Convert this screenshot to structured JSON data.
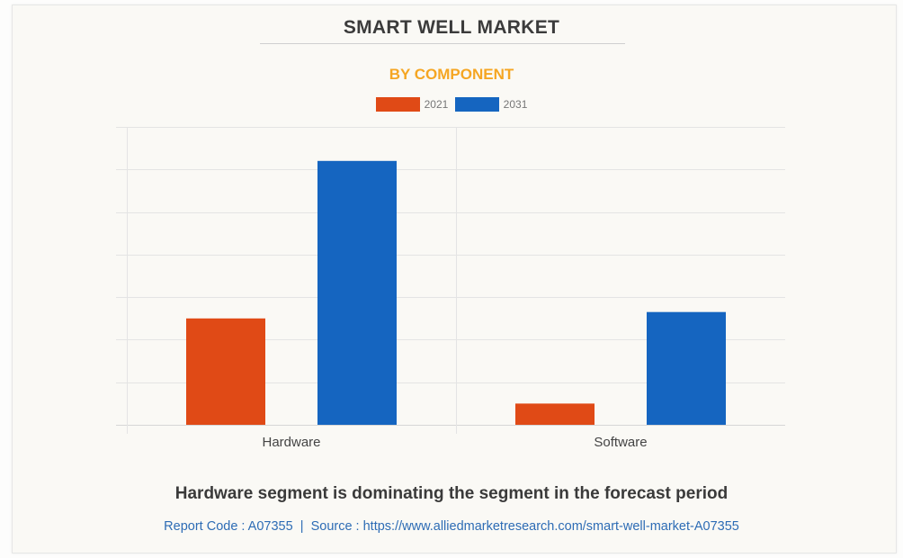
{
  "header": {
    "title": "SMART WELL MARKET",
    "subtitle": "BY COMPONENT"
  },
  "colors": {
    "series_2021": "#e04a16",
    "series_2031": "#1565c0",
    "subtitle": "#f5a623",
    "source_link": "#2d6cb5"
  },
  "chart_data": {
    "type": "bar",
    "title": "SMART WELL MARKET",
    "subtitle": "BY COMPONENT",
    "categories": [
      "Hardware",
      "Software"
    ],
    "series": [
      {
        "name": "2021",
        "color": "#e04a16",
        "values": [
          2.5,
          0.5
        ]
      },
      {
        "name": "2031",
        "color": "#1565c0",
        "values": [
          6.2,
          2.65
        ]
      }
    ],
    "xlabel": "",
    "ylabel": "",
    "ylim": [
      0,
      7
    ],
    "y_gridlines": 7,
    "y_tick_labels_visible": false,
    "grid": true,
    "legend_position": "top-center",
    "legend": [
      "2021",
      "2031"
    ]
  },
  "footer": {
    "insight": "Hardware segment is dominating the segment in the forecast period",
    "report_code_label": "Report Code : A07355",
    "separator": "|",
    "source_label": "Source : https://www.alliedmarketresearch.com/smart-well-market-A07355"
  }
}
